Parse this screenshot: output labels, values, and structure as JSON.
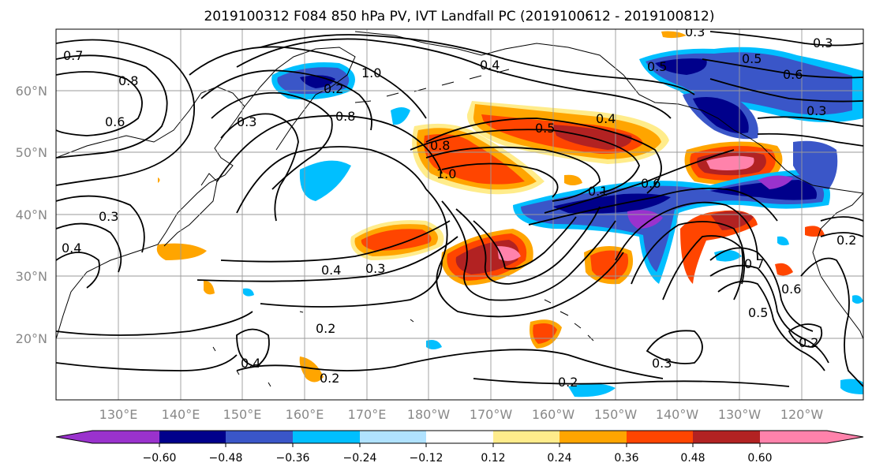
{
  "title": "2019100312 F084 850 hPa PV, IVT Landfall PC (2019100612 - 2019100812)",
  "map": {
    "lat_ticks": [
      "60°N",
      "50°N",
      "40°N",
      "30°N",
      "20°N"
    ],
    "lon_ticks": [
      "130°E",
      "140°E",
      "150°E",
      "160°E",
      "170°E",
      "180°W",
      "170°W",
      "160°W",
      "150°W",
      "140°W",
      "130°W",
      "120°W"
    ]
  },
  "colorbar": {
    "ticks": [
      "−0.60",
      "−0.48",
      "−0.36",
      "−0.24",
      "−0.12",
      "0.12",
      "0.24",
      "0.36",
      "0.48",
      "0.60"
    ],
    "colors": [
      "#9a32cd",
      "#00008b",
      "#3a56c8",
      "#00bfff",
      "#b0e2ff",
      "#ffffff",
      "#ffec8b",
      "#ffa500",
      "#ff4500",
      "#b22222",
      "#ff82ab"
    ]
  },
  "contour_labels": [
    "0.7",
    "0.8",
    "0.6",
    "0.3",
    "1.0",
    "0.8",
    "0.2",
    "0.3",
    "0.4",
    "0.5",
    "0.8",
    "1.0",
    "0.5",
    "0.4",
    "0.5",
    "0.6",
    "0.3",
    "0.1",
    "0.6",
    "0.3",
    "0.4",
    "0.3",
    "0.4",
    "0.3",
    "0.2",
    "0.4",
    "0.2",
    "0.2",
    "0.3",
    "0.7",
    "0.6",
    "0.5",
    "0.2",
    "0.2"
  ]
}
